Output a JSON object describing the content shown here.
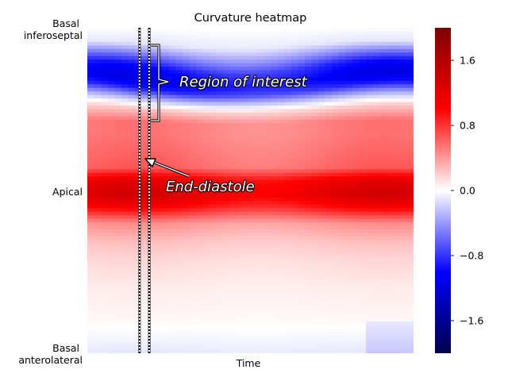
{
  "chart_data": {
    "type": "heatmap",
    "title": "Curvature heatmap",
    "xlabel": "Time",
    "ylabel": "",
    "y_tick_labels": [
      {
        "label_lines": [
          "Basal",
          "inferoseptal"
        ],
        "position": "top"
      },
      {
        "label_lines": [
          "Apical"
        ],
        "position": "middle"
      },
      {
        "label_lines": [
          "Basal",
          "anterolateral"
        ],
        "position": "bottom"
      }
    ],
    "colormap": "seismic",
    "clim": [
      -2.0,
      2.0
    ],
    "colorbar": {
      "ticks": [
        1.6,
        0.8,
        0.0,
        -0.8,
        -1.6
      ],
      "tick_labels": [
        "1.6",
        "0.8",
        "0.0",
        "−0.8",
        "−1.6"
      ]
    },
    "row_profile": [
      [
        0.0,
        0.0
      ],
      [
        0.05,
        -0.1
      ],
      [
        0.08,
        -0.45
      ],
      [
        0.12,
        -0.95
      ],
      [
        0.16,
        -1.15
      ],
      [
        0.19,
        -0.9
      ],
      [
        0.22,
        -0.3
      ],
      [
        0.25,
        0.2
      ],
      [
        0.29,
        0.55
      ],
      [
        0.33,
        0.55
      ],
      [
        0.38,
        0.6
      ],
      [
        0.43,
        0.65
      ],
      [
        0.47,
        1.2
      ],
      [
        0.51,
        1.35
      ],
      [
        0.55,
        1.05
      ],
      [
        0.6,
        0.45
      ],
      [
        0.66,
        0.25
      ],
      [
        0.72,
        0.15
      ],
      [
        0.8,
        0.08
      ],
      [
        0.9,
        0.03
      ],
      [
        1.0,
        -0.1
      ]
    ],
    "end_diastole_lines": [
      0.16,
      0.19
    ],
    "annotations": [
      {
        "text": "Region of interest",
        "type": "bracket"
      },
      {
        "text": "End-diastole",
        "type": "arrow"
      }
    ]
  }
}
